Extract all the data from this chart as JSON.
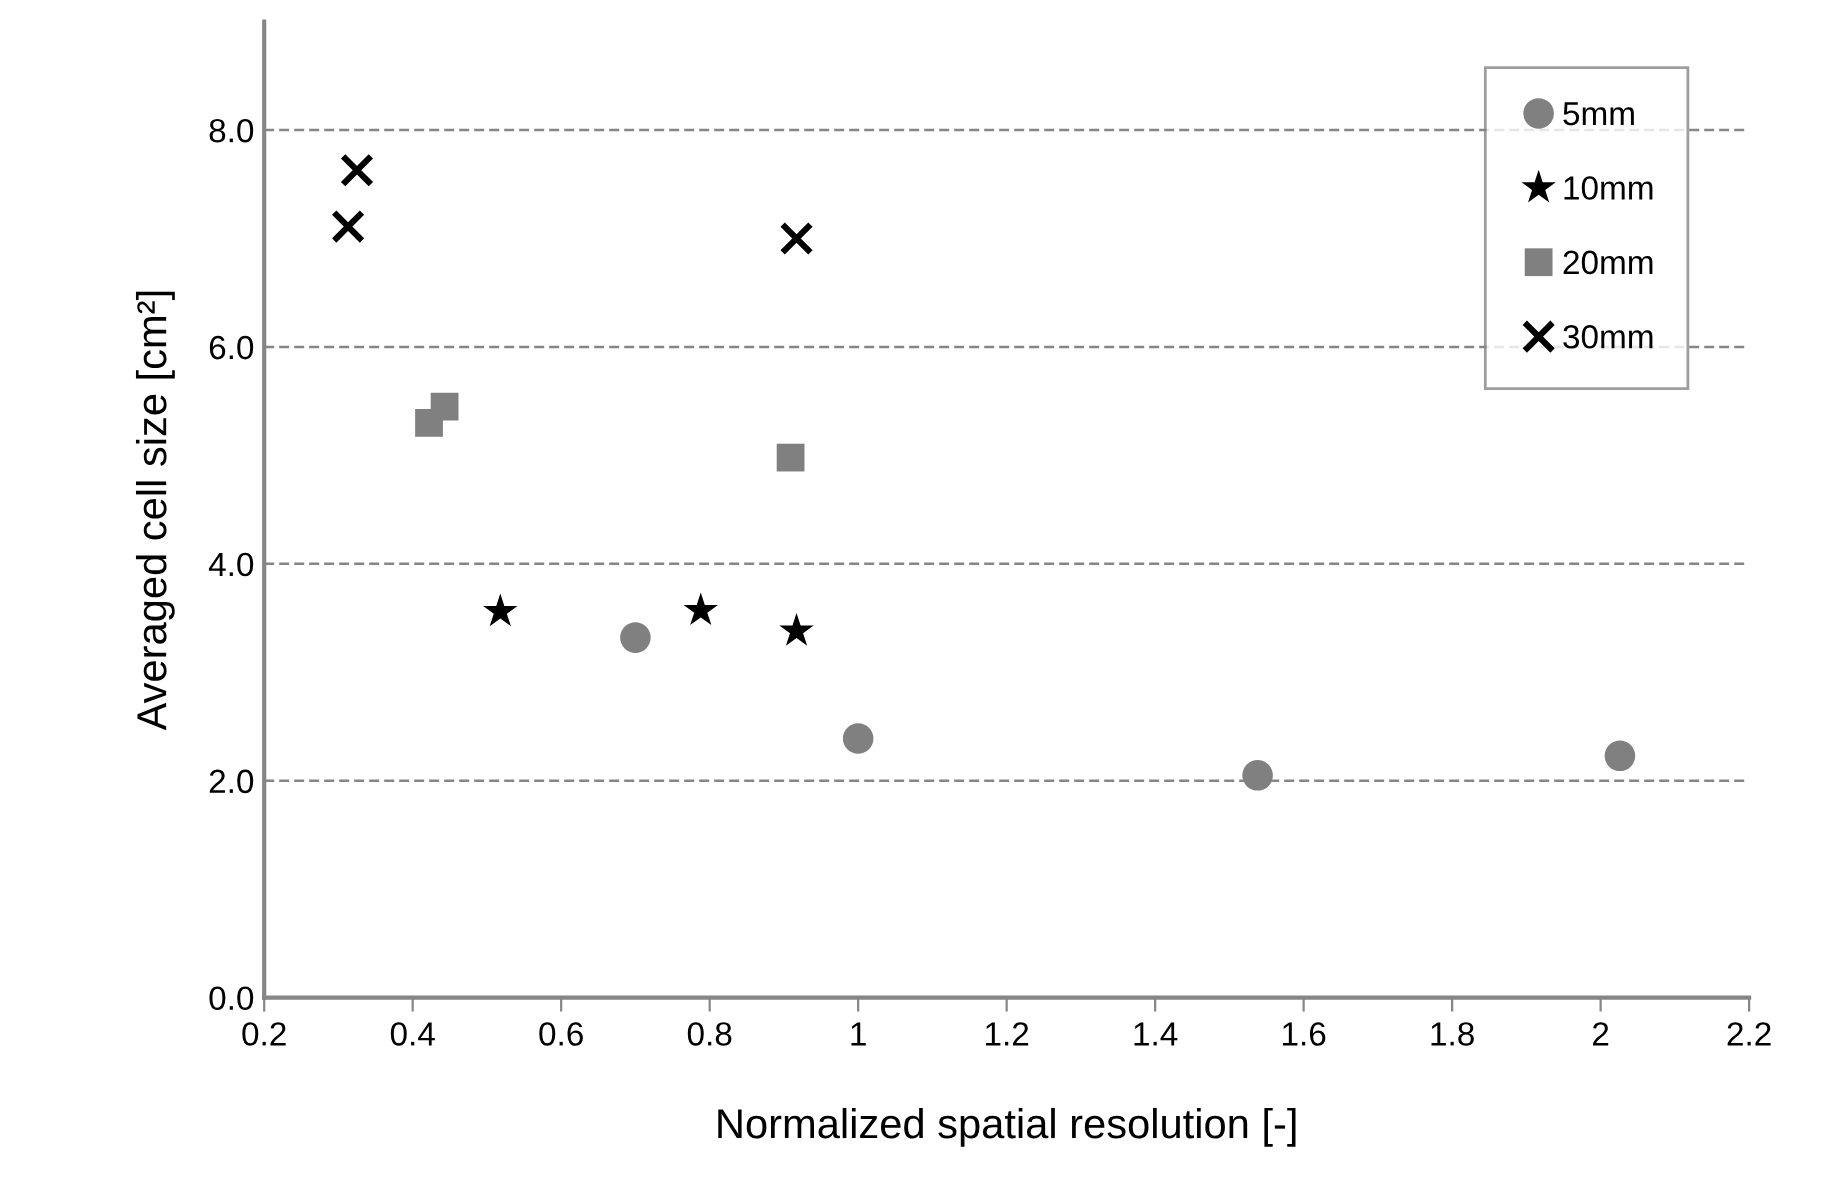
{
  "chart_data": {
    "type": "scatter",
    "xlabel": "Normalized spatial resolution [-]",
    "ylabel": "Averaged cell size [cm²]",
    "xlim": [
      0.2,
      2.2
    ],
    "xticks": [
      {
        "value": 0.2,
        "label": "0.2"
      },
      {
        "value": 0.4,
        "label": "0.4"
      },
      {
        "value": 0.6,
        "label": "0.6"
      },
      {
        "value": 0.8,
        "label": "0.8"
      },
      1,
      {
        "value": 1.2,
        "label": "1.2"
      },
      {
        "value": 1.4,
        "label": "1.4"
      },
      {
        "value": 1.6,
        "label": "1.6"
      },
      {
        "value": 1.8,
        "label": "1.8"
      },
      2,
      {
        "value": 2.2,
        "label": "2.2"
      }
    ],
    "ylim": [
      0,
      9
    ],
    "yticks": [
      {
        "value": 0,
        "label": "0.0"
      },
      {
        "value": 2,
        "label": "2.0"
      },
      {
        "value": 4,
        "label": "4.0"
      },
      {
        "value": 6,
        "label": "6.0"
      },
      {
        "value": 8,
        "label": "8.0"
      }
    ],
    "grid": "y",
    "legend": "top right",
    "series": [
      {
        "name": "5mm",
        "color": "#808080",
        "marker": "circle",
        "x": [
          0.7,
          1.0,
          1.538,
          2.026
        ],
        "values": [
          3.32,
          2.39,
          2.05,
          2.23
        ]
      },
      {
        "name": "10mm",
        "color": "#000000",
        "marker": "star",
        "x": [
          0.518,
          0.788,
          0.917
        ],
        "values": [
          3.56,
          3.57,
          3.38
        ]
      },
      {
        "name": "20mm",
        "color": "#808080",
        "marker": "square",
        "x": [
          0.443,
          0.422,
          0.909
        ],
        "values": [
          5.45,
          5.3,
          4.98
        ]
      },
      {
        "name": "30mm",
        "color": "#000000",
        "marker": "cross",
        "x": [
          0.325,
          0.313,
          0.917
        ],
        "values": [
          7.63,
          7.11,
          7.0
        ]
      }
    ]
  }
}
